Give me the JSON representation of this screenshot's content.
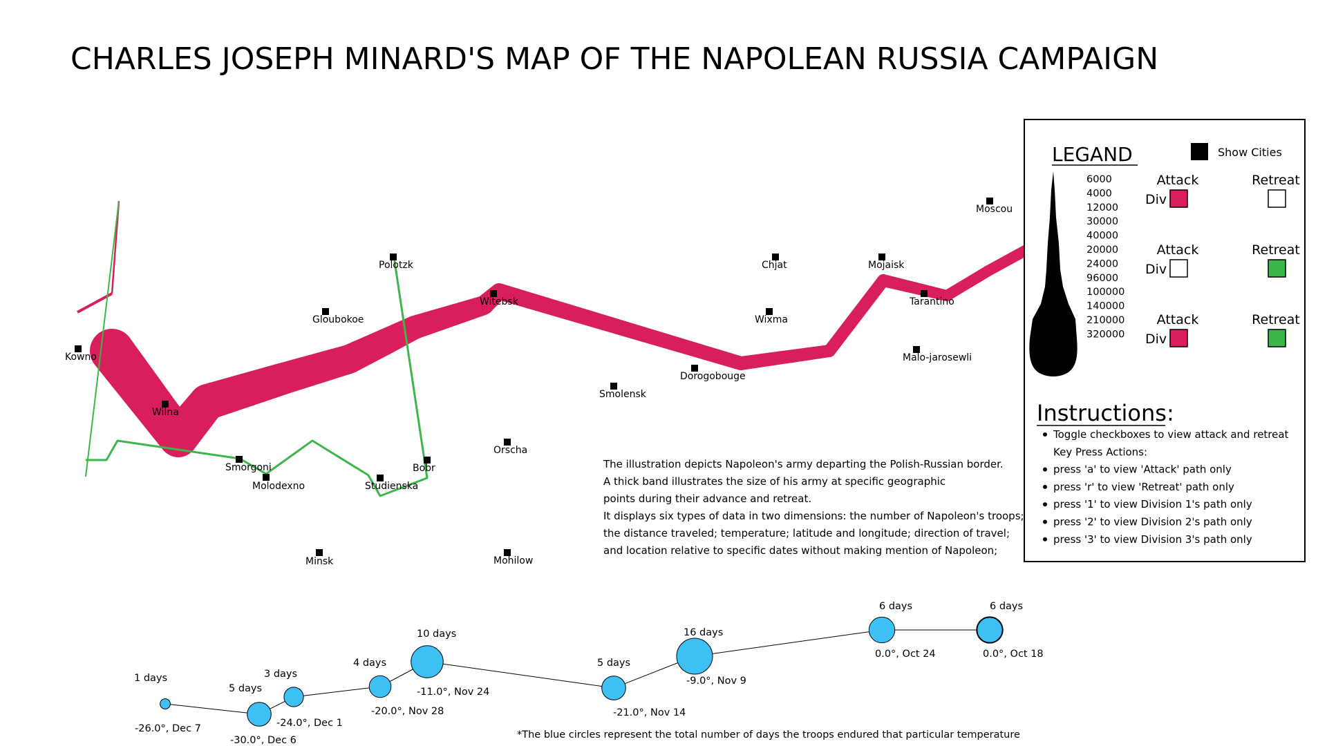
{
  "title": "CHARLES JOSEPH MINARD'S MAP OF THE NAPOLEAN RUSSIA CAMPAIGN",
  "colors": {
    "attack": "#d81f5c",
    "retreat": "#3db54a",
    "temperature_circle": "#3fc0f5",
    "city": "#000000"
  },
  "cities": [
    {
      "name": "Kowno"
    },
    {
      "name": "Wilna"
    },
    {
      "name": "Smorgoni"
    },
    {
      "name": "Molodexno"
    },
    {
      "name": "Gloubokoe"
    },
    {
      "name": "Minsk"
    },
    {
      "name": "Studienska"
    },
    {
      "name": "Polotzk"
    },
    {
      "name": "Bobr"
    },
    {
      "name": "Witebsk"
    },
    {
      "name": "Orscha"
    },
    {
      "name": "Mohilow"
    },
    {
      "name": "Smolensk"
    },
    {
      "name": "Dorogobouge"
    },
    {
      "name": "Wixma"
    },
    {
      "name": "Chjat"
    },
    {
      "name": "Mojaisk"
    },
    {
      "name": "Tarantino"
    },
    {
      "name": "Malo-jarosewli"
    },
    {
      "name": "Moscou"
    }
  ],
  "legend": {
    "heading": "LEGAND",
    "show_cities_label": "Show Cities",
    "attack_label": "Attack",
    "retreat_label": "Retreat",
    "divisions": [
      {
        "label": "Div 1:",
        "attack_checked": true,
        "retreat_checked": false
      },
      {
        "label": "Div 2:",
        "attack_checked": false,
        "retreat_checked": true
      },
      {
        "label": "Div 3:",
        "attack_checked": true,
        "retreat_checked": true
      }
    ],
    "troop_scale": [
      "6000",
      "4000",
      "12000",
      "30000",
      "40000",
      "20000",
      "24000",
      "96000",
      "100000",
      "140000",
      "210000",
      "320000"
    ]
  },
  "instructions": {
    "heading": "Instructions:",
    "items": [
      "Toggle checkboxes to view attack and retreat",
      "Key Press Actions:",
      "press 'a' to view 'Attack' path only",
      "press 'r' to view 'Retreat' path only",
      "press '1' to view Division 1's path only",
      "press '2' to view Division 2's path only",
      "press '3' to view Division 3's path only"
    ]
  },
  "description": [
    "The illustration depicts Napoleon's army departing the Polish-Russian border.",
    "A thick band illustrates the size of his army at specific geographic",
    "points during their advance and retreat.",
    "It displays six types of data in two dimensions: the number of Napoleon's troops;",
    "the distance traveled; temperature; latitude and longitude; direction of travel;",
    "and location relative to specific dates without making mention of Napoleon;"
  ],
  "chart_data": {
    "type": "line",
    "description_note": "Temperature during retreat; circle size = days at that temperature",
    "points": [
      {
        "days": "6 days",
        "temp": "0.0°, Oct 18",
        "day_count": 6
      },
      {
        "days": "6 days",
        "temp": "0.0°, Oct 24",
        "day_count": 6
      },
      {
        "days": "16 days",
        "temp": "-9.0°, Nov 9",
        "day_count": 16
      },
      {
        "days": "5 days",
        "temp": "-21.0°, Nov 14",
        "day_count": 5
      },
      {
        "days": "10 days",
        "temp": "-11.0°, Nov 24",
        "day_count": 10
      },
      {
        "days": "4 days",
        "temp": "-20.0°, Nov 28",
        "day_count": 4
      },
      {
        "days": "3 days",
        "temp": "-24.0°, Dec 1",
        "day_count": 3
      },
      {
        "days": "5 days",
        "temp": "-30.0°, Dec 6",
        "day_count": 5
      },
      {
        "days": "1 days",
        "temp": "-26.0°, Dec 7",
        "day_count": 1
      }
    ],
    "footnote": "*The blue circles represent the total number of days the troops endured that particular temperature"
  }
}
